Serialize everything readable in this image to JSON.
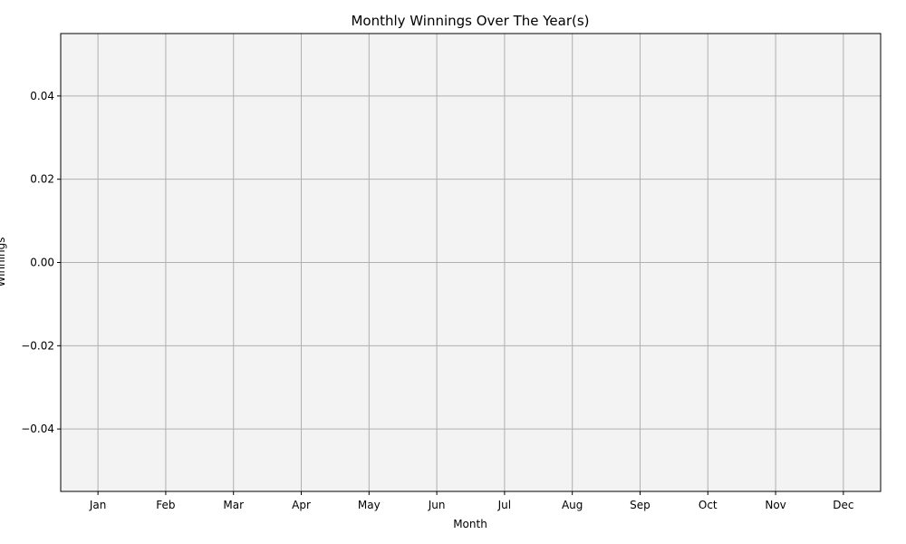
{
  "chart_data": {
    "type": "line",
    "title": "Monthly Winnings Over The Year(s)",
    "xlabel": "Month",
    "ylabel": "Winnings",
    "categories": [
      "Jan",
      "Feb",
      "Mar",
      "Apr",
      "May",
      "Jun",
      "Jul",
      "Aug",
      "Sep",
      "Oct",
      "Nov",
      "Dec"
    ],
    "series": [],
    "ylim": [
      -0.055,
      0.055
    ],
    "yticks": [
      -0.04,
      -0.02,
      0.0,
      0.02,
      0.04
    ],
    "ytick_labels": [
      "−0.04",
      "−0.02",
      "0.00",
      "0.02",
      "0.04"
    ],
    "grid": true,
    "colors": {
      "plot_background": "#f3f3f3",
      "grid": "#b0b0b0",
      "axis": "#000000"
    }
  }
}
